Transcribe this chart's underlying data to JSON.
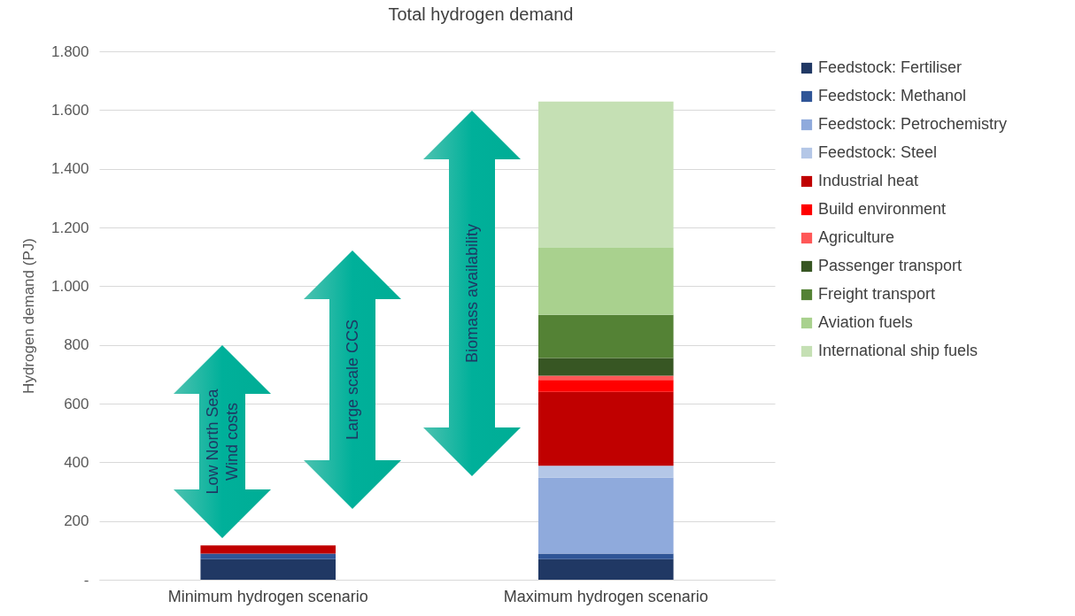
{
  "chart_data": {
    "type": "bar",
    "title": "Total hydrogen demand",
    "ylabel": "Hydrogen demand (PJ)",
    "categories": [
      "Minimum hydrogen scenario",
      "Maximum hydrogen scenario"
    ],
    "stacked": true,
    "grid": "y",
    "legend": "right",
    "ylim": [
      0,
      1800
    ],
    "yticks": [
      {
        "value": 0,
        "label": "-"
      },
      200,
      400,
      600,
      800,
      {
        "value": 1000,
        "label": "1.000"
      },
      {
        "value": 1200,
        "label": "1.200"
      },
      {
        "value": 1400,
        "label": "1.400"
      },
      {
        "value": 1600,
        "label": "1.600"
      },
      {
        "value": 1800,
        "label": "1.800"
      }
    ],
    "series": [
      {
        "name": "Feedstock: Fertiliser",
        "color": "#203864",
        "values": [
          70,
          70
        ]
      },
      {
        "name": "Feedstock: Methanol",
        "color": "#2f5597",
        "values": [
          19,
          19
        ]
      },
      {
        "name": "Feedstock: Petrochemistry",
        "color": "#8faadc",
        "values": [
          null,
          259
        ]
      },
      {
        "name": "Feedstock: Steel",
        "color": "#b4c7e7",
        "values": [
          null,
          40
        ]
      },
      {
        "name": "Industrial heat",
        "color": "#c00000",
        "values": [
          28,
          252
        ]
      },
      {
        "name": "Build environment",
        "color": "#ff0000",
        "values": [
          null,
          41
        ]
      },
      {
        "name": "Agriculture",
        "color": "#ff5757",
        "values": [
          null,
          14
        ]
      },
      {
        "name": "Passenger transport",
        "color": "#375623",
        "values": [
          null,
          60
        ]
      },
      {
        "name": "Freight transport",
        "color": "#548235",
        "values": [
          null,
          147
        ]
      },
      {
        "name": "Aviation fuels",
        "color": "#a9d18e",
        "values": [
          null,
          229
        ]
      },
      {
        "name": "International ship fuels",
        "color": "#c5e0b4",
        "values": [
          null,
          498
        ]
      }
    ],
    "annotations": [
      "Low North Sea Wind costs",
      "Large scale CCS",
      "Biomass availability"
    ]
  }
}
